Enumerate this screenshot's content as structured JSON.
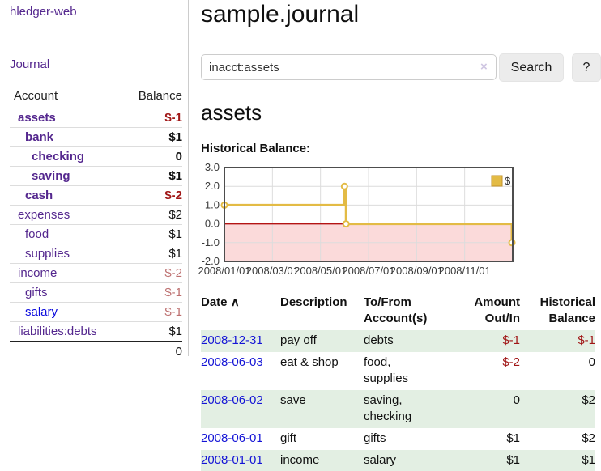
{
  "sidebar": {
    "app_title": "hledger-web",
    "journal_link": "Journal",
    "accounts_header": {
      "account": "Account",
      "balance": "Balance"
    },
    "accounts": [
      {
        "name": "assets",
        "balance": "$-1"
      },
      {
        "name": "bank",
        "balance": "$1"
      },
      {
        "name": "checking",
        "balance": "0"
      },
      {
        "name": "saving",
        "balance": "$1"
      },
      {
        "name": "cash",
        "balance": "$-2"
      },
      {
        "name": "expenses",
        "balance": "$2"
      },
      {
        "name": "food",
        "balance": "$1"
      },
      {
        "name": "supplies",
        "balance": "$1"
      },
      {
        "name": "income",
        "balance": "$-2"
      },
      {
        "name": "gifts",
        "balance": "$-1"
      },
      {
        "name": "salary",
        "balance": "$-1"
      },
      {
        "name": "liabilities:debts",
        "balance": "$1"
      }
    ],
    "total": "0"
  },
  "header": {
    "title": "sample.journal"
  },
  "search": {
    "value": "inacct:assets",
    "clear_icon": "×",
    "button_label": "Search",
    "help_label": "?"
  },
  "main": {
    "account_heading": "assets",
    "chart_label": "Historical Balance:"
  },
  "chart_data": {
    "type": "line",
    "step": true,
    "title": "Historical Balance",
    "legend": {
      "label": "$",
      "position": "top-right"
    },
    "x_tick_labels": [
      "2008/01/01",
      "2008/03/01",
      "2008/05/01",
      "2008/07/01",
      "2008/09/01",
      "2008/11/01"
    ],
    "x_tick_dates": [
      "2008-01-01",
      "2008-03-01",
      "2008-05-01",
      "2008-07-01",
      "2008-09-01",
      "2008-11-01"
    ],
    "y_tick_labels": [
      "3.0",
      "2.0",
      "1.0",
      "0.0",
      "-1.0",
      "-2.0"
    ],
    "y_tick_values": [
      3,
      2,
      1,
      0,
      -1,
      -2
    ],
    "xlim": [
      "2008-01-01",
      "2008-12-31"
    ],
    "ylim": [
      -2,
      3
    ],
    "series": [
      {
        "name": "$",
        "color": "#e3bb45",
        "points": [
          [
            "2008-01-01",
            1
          ],
          [
            "2008-06-01",
            2
          ],
          [
            "2008-06-03",
            0
          ],
          [
            "2008-12-31",
            -1
          ]
        ]
      }
    ],
    "colors": {
      "negative_region": "#fbdada",
      "zero_line": "#b41414",
      "grid": "#dcdcdc",
      "border": "#4d4d4d",
      "marker_fill": "#ffffff",
      "legend_box_border": "#c2922c",
      "tick_text": "#3a3a3a"
    }
  },
  "journal": {
    "headers": {
      "date": "Date",
      "sort_indicator": "∧",
      "description": "Description",
      "accounts": "To/From Account(s)",
      "amount": "Amount Out/In",
      "balance": "Historical Balance"
    },
    "rows": [
      {
        "date": "2008-12-31",
        "description": "pay off",
        "accounts": "debts",
        "amount": "$-1",
        "balance": "$-1"
      },
      {
        "date": "2008-06-03",
        "description": "eat & shop",
        "accounts": "food, supplies",
        "amount": "$-2",
        "balance": "0"
      },
      {
        "date": "2008-06-02",
        "description": "save",
        "accounts": "saving, checking",
        "amount": "0",
        "balance": "$2"
      },
      {
        "date": "2008-06-01",
        "description": "gift",
        "accounts": "gifts",
        "amount": "$1",
        "balance": "$2"
      },
      {
        "date": "2008-01-01",
        "description": "income",
        "accounts": "salary",
        "amount": "$1",
        "balance": "$1"
      }
    ]
  },
  "theme_colors": {
    "link_purple": "#54278e",
    "link_blue": "#0d0dde",
    "date_link_blue": "#1414d6",
    "negative_strong": "#a01616",
    "negative_muted": "#bd6f6f",
    "row_green": "#e3efe3"
  }
}
